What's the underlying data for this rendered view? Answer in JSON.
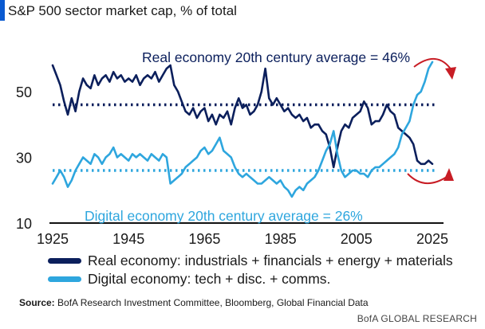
{
  "title": "S&P 500 sector market cap, % of total",
  "chart_data": {
    "type": "line",
    "title": "S&P 500 sector market cap, % of total",
    "xlabel": "",
    "ylabel": "",
    "xlim": [
      1925,
      2025
    ],
    "ylim": [
      10,
      60
    ],
    "x_ticks": [
      "1925",
      "1945",
      "1965",
      "1985",
      "2005",
      "2025"
    ],
    "y_ticks": [
      "50",
      "30",
      "10"
    ],
    "series": [
      {
        "name": "Real economy: industrials + financials + energy + materials",
        "color": "#0b1f5c",
        "x": [
          1925,
          1926,
          1927,
          1928,
          1929,
          1930,
          1931,
          1932,
          1933,
          1934,
          1935,
          1936,
          1937,
          1938,
          1939,
          1940,
          1941,
          1942,
          1943,
          1944,
          1945,
          1946,
          1947,
          1948,
          1949,
          1950,
          1951,
          1952,
          1953,
          1954,
          1955,
          1956,
          1957,
          1958,
          1959,
          1960,
          1961,
          1962,
          1963,
          1964,
          1965,
          1966,
          1967,
          1968,
          1969,
          1970,
          1971,
          1972,
          1973,
          1974,
          1975,
          1976,
          1977,
          1978,
          1979,
          1980,
          1981,
          1982,
          1983,
          1984,
          1985,
          1986,
          1987,
          1988,
          1989,
          1990,
          1991,
          1992,
          1993,
          1994,
          1995,
          1996,
          1997,
          1998,
          1999,
          2000,
          2001,
          2002,
          2003,
          2004,
          2005,
          2006,
          2007,
          2008,
          2009,
          2010,
          2011,
          2012,
          2013,
          2014,
          2015,
          2016,
          2017,
          2018,
          2019,
          2020,
          2021,
          2022,
          2023,
          2024,
          2025
        ],
        "values": [
          58,
          55,
          52,
          47,
          43,
          48,
          44,
          50,
          54,
          52,
          51,
          55,
          52,
          54,
          55,
          53,
          56,
          54,
          55,
          53,
          54,
          53,
          55,
          52,
          54,
          55,
          54,
          56,
          53,
          55,
          57,
          58,
          52,
          50,
          47,
          44,
          43,
          45,
          42,
          44,
          45,
          41,
          43,
          40,
          43,
          42,
          44,
          40,
          45,
          48,
          45,
          46,
          43,
          44,
          46,
          50,
          57,
          48,
          46,
          48,
          46,
          44,
          45,
          43,
          42,
          43,
          41,
          42,
          39,
          40,
          40,
          38,
          37,
          33,
          27,
          33,
          38,
          40,
          39,
          42,
          43,
          44,
          47,
          45,
          40,
          41,
          41,
          43,
          46,
          44,
          43,
          39,
          38,
          37,
          36,
          34,
          29,
          28,
          28,
          29,
          28
        ]
      },
      {
        "name": "Digital economy: tech + disc. + comms.",
        "color": "#2ea6de",
        "x": [
          1925,
          1926,
          1927,
          1928,
          1929,
          1930,
          1931,
          1932,
          1933,
          1934,
          1935,
          1936,
          1937,
          1938,
          1939,
          1940,
          1941,
          1942,
          1943,
          1944,
          1945,
          1946,
          1947,
          1948,
          1949,
          1950,
          1951,
          1952,
          1953,
          1954,
          1955,
          1956,
          1957,
          1958,
          1959,
          1960,
          1961,
          1962,
          1963,
          1964,
          1965,
          1966,
          1967,
          1968,
          1969,
          1970,
          1971,
          1972,
          1973,
          1974,
          1975,
          1976,
          1977,
          1978,
          1979,
          1980,
          1981,
          1982,
          1983,
          1984,
          1985,
          1986,
          1987,
          1988,
          1989,
          1990,
          1991,
          1992,
          1993,
          1994,
          1995,
          1996,
          1997,
          1998,
          1999,
          2000,
          2001,
          2002,
          2003,
          2004,
          2005,
          2006,
          2007,
          2008,
          2009,
          2010,
          2011,
          2012,
          2013,
          2014,
          2015,
          2016,
          2017,
          2018,
          2019,
          2020,
          2021,
          2022,
          2023,
          2024,
          2025
        ],
        "values": [
          22,
          24,
          26,
          24,
          21,
          23,
          26,
          28,
          30,
          29,
          28,
          31,
          30,
          28,
          30,
          31,
          33,
          30,
          31,
          30,
          29,
          31,
          30,
          31,
          30,
          29,
          31,
          30,
          29,
          31,
          30,
          22,
          23,
          24,
          25,
          27,
          28,
          29,
          30,
          32,
          33,
          31,
          32,
          34,
          36,
          32,
          31,
          30,
          27,
          25,
          24,
          25,
          24,
          23,
          22,
          22,
          23,
          24,
          23,
          22,
          23,
          21,
          20,
          18,
          20,
          21,
          20,
          22,
          23,
          24,
          26,
          29,
          32,
          34,
          38,
          31,
          26,
          24,
          25,
          26,
          26,
          25,
          25,
          24,
          26,
          27,
          27,
          28,
          29,
          30,
          31,
          33,
          37,
          39,
          41,
          46,
          49,
          50,
          53,
          57,
          59
        ]
      }
    ],
    "reference_lines": [
      {
        "name": "Real economy 20th century average",
        "label": "Real economy 20th century average = 46%",
        "value": 46,
        "color": "#0b1f5c"
      },
      {
        "name": "Digital economy 20th century average",
        "label": "Digital economy 20th century average = 26%",
        "value": 26,
        "color": "#2ea6de"
      }
    ],
    "annotations": [
      {
        "type": "curved-arrow",
        "direction": "down",
        "color": "#c81d25",
        "at": "real economy near 2025"
      },
      {
        "type": "curved-arrow",
        "direction": "up",
        "color": "#c81d25",
        "at": "real economy near 2025"
      }
    ]
  },
  "legend": {
    "real_label": "Real economy: industrials + financials + energy + materials",
    "digital_label": "Digital economy: tech + disc. + comms.",
    "real_color": "#0b1f5c",
    "digital_color": "#2ea6de"
  },
  "source": {
    "prefix": "Source:",
    "text": "BofA Research Investment Committee, Bloomberg, Global Financial Data"
  },
  "footer": "BofA GLOBAL RESEARCH"
}
